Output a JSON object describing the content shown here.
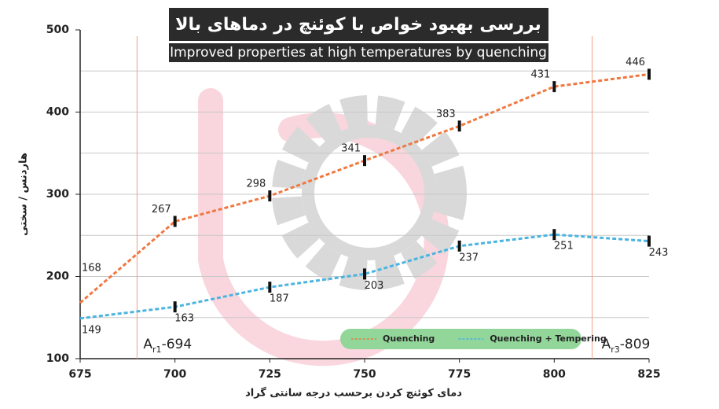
{
  "chart_data": {
    "type": "line",
    "title": "بررسی بهبود خواص با کوئنچ در دماهای بالا",
    "subtitle": "Improved properties at high temperatures by quenching",
    "x_label": "دمای کوئنچ کردن برحسب درجه سانتی گراد",
    "y_label": "هاردنس / سختی",
    "x": [
      675,
      700,
      725,
      750,
      775,
      800,
      825
    ],
    "series": [
      {
        "name": "Quenching",
        "color": "#f07840",
        "values": [
          168,
          267,
          298,
          341,
          383,
          431,
          446
        ]
      },
      {
        "name": "Quenching + Tempering",
        "color": "#4ab4e0",
        "values": [
          149,
          163,
          187,
          203,
          237,
          251,
          243
        ]
      }
    ],
    "xlim": [
      675,
      825
    ],
    "xticks": [
      675,
      700,
      725,
      750,
      775,
      800,
      825
    ],
    "ylim": [
      100,
      500
    ],
    "yticks": [
      100,
      200,
      300,
      400,
      500
    ],
    "grid_yticks": [
      150,
      200,
      250,
      300,
      350,
      400,
      450
    ],
    "grid": true,
    "legend": "lower right",
    "annotations": [
      {
        "x": 690,
        "text": "A",
        "sub": "r1",
        "suffix": "-694"
      },
      {
        "x": 810,
        "text": "A",
        "sub": "r3",
        "suffix": "-809"
      }
    ]
  }
}
